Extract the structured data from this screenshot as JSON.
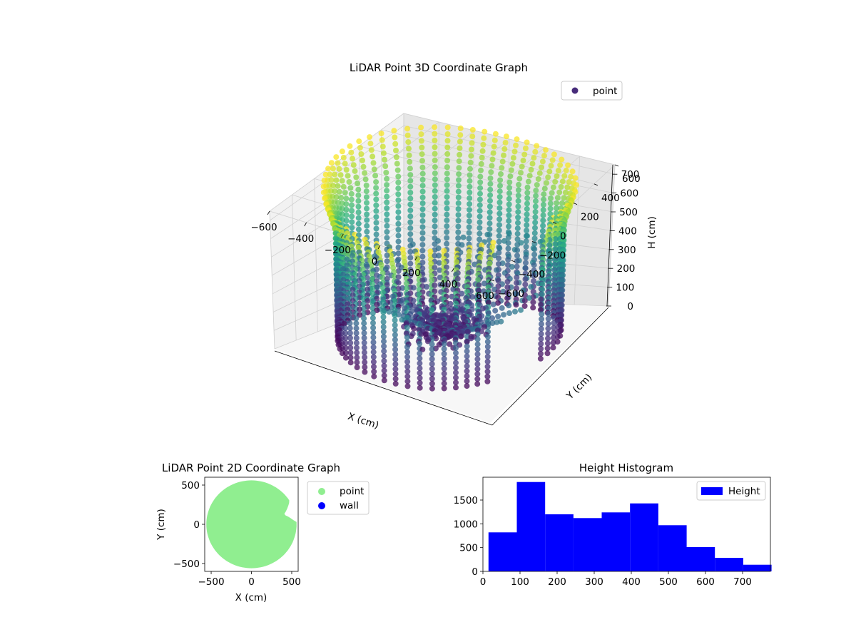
{
  "colors": {
    "viridis_dark": "#440154",
    "viridis_purple": "#3b528b",
    "viridis_teal": "#21918c",
    "viridis_green": "#5ec962",
    "viridis_yellow": "#fde725",
    "scatter_2d_point": "#90ee90",
    "scatter_2d_wall": "#0000ff",
    "histogram": "#0000ff"
  },
  "chart_data": [
    {
      "type": "scatter3d",
      "title": "LiDAR Point 3D Coordinate Graph",
      "xlabel": "X (cm)",
      "ylabel": "Y (cm)",
      "zlabel": "H (cm)",
      "xlim": [
        -600,
        600
      ],
      "ylim": [
        -600,
        600
      ],
      "zlim": [
        0,
        750
      ],
      "z_inverted": true,
      "xticks": [
        "−600",
        "−400",
        "−200",
        "0",
        "200",
        "400",
        "600"
      ],
      "yticks": [
        "−600",
        "−400",
        "−200",
        "0",
        "200",
        "400",
        "600"
      ],
      "zticks": [
        "0",
        "100",
        "200",
        "300",
        "400",
        "500",
        "600",
        "700"
      ],
      "legend": {
        "position": "top-right",
        "entries": [
          "point"
        ]
      },
      "colormap": "viridis",
      "structure": {
        "shape": "cylindrical wall scan",
        "radius_cm": 550,
        "scan_lines": 60,
        "height_range_cm": [
          0,
          780
        ],
        "missing_wall_angles_deg": [
          330,
          360
        ]
      }
    },
    {
      "type": "scatter",
      "title": "LiDAR Point 2D Coordinate Graph",
      "xlabel": "X (cm)",
      "ylabel": "Y (cm)",
      "xlim": [
        -580,
        580
      ],
      "ylim": [
        -600,
        600
      ],
      "xticks": [
        "−500",
        "0",
        "500"
      ],
      "yticks": [
        "−500",
        "0",
        "500"
      ],
      "legend": {
        "position": "outside-right",
        "entries": [
          "point",
          "wall"
        ]
      },
      "series": [
        {
          "name": "point",
          "region": "filled disc of radius 560 centered at (0, 0) with a notch near (400, 30) to (400, 250)"
        },
        {
          "name": "wall",
          "region": "none visible"
        }
      ]
    },
    {
      "type": "histogram",
      "title": "Height Histogram",
      "xlim": [
        0,
        775
      ],
      "ylim": [
        0,
        1980
      ],
      "xticks": [
        "0",
        "100",
        "200",
        "300",
        "400",
        "500",
        "600",
        "700"
      ],
      "yticks": [
        "0",
        "500",
        "1000",
        "1500"
      ],
      "legend": {
        "position": "top-right",
        "entries": [
          "Height"
        ]
      },
      "bin_edges": [
        15,
        91.3,
        167.6,
        243.9,
        320.2,
        396.5,
        472.8,
        549.1,
        625.4,
        701.7,
        778
      ],
      "counts": [
        820,
        1880,
        1200,
        1120,
        1240,
        1430,
        970,
        510,
        285,
        140
      ]
    }
  ]
}
